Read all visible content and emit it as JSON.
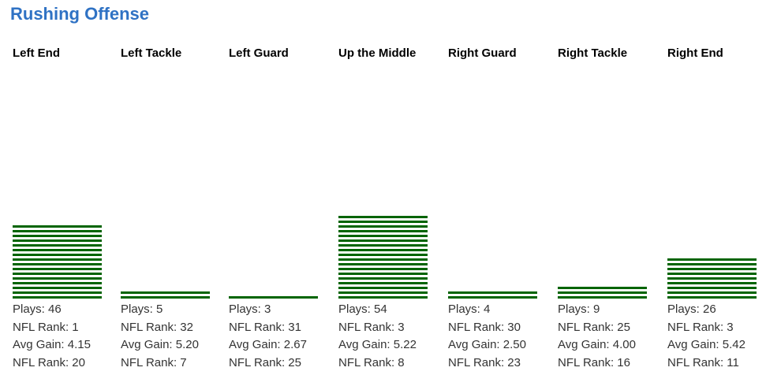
{
  "chart_data": {
    "type": "bar",
    "title": "Rushing Offense",
    "bar_color": "#006400",
    "title_color": "#2f72c4",
    "plays_per_stripe": 3,
    "categories": [
      "Left End",
      "Left Tackle",
      "Left Guard",
      "Up the Middle",
      "Right Guard",
      "Right Tackle",
      "Right End"
    ],
    "columns": [
      {
        "label": "Left End",
        "plays": 46,
        "plays_text": "Plays: 46",
        "plays_rank_text": "NFL Rank: 1",
        "avg_text": "Avg Gain: 4.15",
        "avg_rank_text": "NFL Rank: 20"
      },
      {
        "label": "Left Tackle",
        "plays": 5,
        "plays_text": "Plays: 5",
        "plays_rank_text": "NFL Rank: 32",
        "avg_text": "Avg Gain: 5.20",
        "avg_rank_text": "NFL Rank: 7"
      },
      {
        "label": "Left Guard",
        "plays": 3,
        "plays_text": "Plays: 3",
        "plays_rank_text": "NFL Rank: 31",
        "avg_text": "Avg Gain: 2.67",
        "avg_rank_text": "NFL Rank: 25"
      },
      {
        "label": "Up the Middle",
        "plays": 54,
        "plays_text": "Plays: 54",
        "plays_rank_text": "NFL Rank: 3",
        "avg_text": "Avg Gain: 5.22",
        "avg_rank_text": "NFL Rank: 8"
      },
      {
        "label": "Right Guard",
        "plays": 4,
        "plays_text": "Plays: 4",
        "plays_rank_text": "NFL Rank: 30",
        "avg_text": "Avg Gain: 2.50",
        "avg_rank_text": "NFL Rank: 23"
      },
      {
        "label": "Right Tackle",
        "plays": 9,
        "plays_text": "Plays: 9",
        "plays_rank_text": "NFL Rank: 25",
        "avg_text": "Avg Gain: 4.00",
        "avg_rank_text": "NFL Rank: 16"
      },
      {
        "label": "Right End",
        "plays": 26,
        "plays_text": "Plays: 26",
        "plays_rank_text": "NFL Rank: 3",
        "avg_text": "Avg Gain: 5.42",
        "avg_rank_text": "NFL Rank: 11"
      }
    ]
  }
}
